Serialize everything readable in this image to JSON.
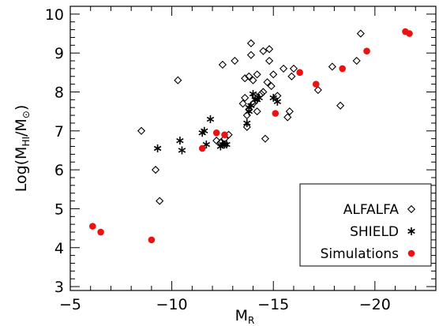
{
  "chart_data": {
    "type": "scatter",
    "xlabel": {
      "main": "M",
      "sub": "R"
    },
    "ylabel": {
      "prefix": "Log(M",
      "sub1": "HI",
      "mid": "/M",
      "sub2": "⊙",
      "suffix": ")"
    },
    "xlim": [
      -5,
      -23
    ],
    "ylim": [
      2.9,
      10.2
    ],
    "xticks": [
      -5,
      -10,
      -15,
      -20
    ],
    "xtick_labels": [
      "−5",
      "−10",
      "−15",
      "−20"
    ],
    "yticks": [
      3,
      4,
      5,
      6,
      7,
      8,
      9,
      10
    ],
    "ytick_labels": [
      "3",
      "4",
      "5",
      "6",
      "7",
      "8",
      "9",
      "10"
    ],
    "grid": false,
    "legend_position": "bottom-right",
    "series": [
      {
        "name": "ALFALFA",
        "marker": "diamond",
        "color": "#000000",
        "points": [
          [
            -8.5,
            7.0
          ],
          [
            -9.2,
            6.0
          ],
          [
            -9.4,
            5.2
          ],
          [
            -10.3,
            8.3
          ],
          [
            -12.2,
            6.75
          ],
          [
            -12.5,
            8.7
          ],
          [
            -12.4,
            6.7
          ],
          [
            -12.6,
            6.8
          ],
          [
            -12.8,
            6.9
          ],
          [
            -13.1,
            8.8
          ],
          [
            -13.5,
            7.7
          ],
          [
            -13.6,
            7.85
          ],
          [
            -13.6,
            8.35
          ],
          [
            -13.7,
            7.4
          ],
          [
            -13.7,
            7.1
          ],
          [
            -13.8,
            8.4
          ],
          [
            -13.8,
            7.55
          ],
          [
            -13.9,
            8.95
          ],
          [
            -14.0,
            8.3
          ],
          [
            -14.0,
            7.7
          ],
          [
            -13.9,
            9.25
          ],
          [
            -14.1,
            7.9
          ],
          [
            -14.2,
            8.45
          ],
          [
            -14.2,
            7.5
          ],
          [
            -14.4,
            7.95
          ],
          [
            -14.5,
            8.0
          ],
          [
            -14.5,
            9.05
          ],
          [
            -14.7,
            8.25
          ],
          [
            -14.8,
            9.1
          ],
          [
            -14.9,
            8.15
          ],
          [
            -14.8,
            8.8
          ],
          [
            -15.0,
            8.45
          ],
          [
            -15.2,
            7.9
          ],
          [
            -14.6,
            6.8
          ],
          [
            -15.5,
            8.6
          ],
          [
            -15.7,
            7.35
          ],
          [
            -15.8,
            7.5
          ],
          [
            -15.9,
            8.4
          ],
          [
            -16.0,
            8.6
          ],
          [
            -17.2,
            8.05
          ],
          [
            -17.9,
            8.65
          ],
          [
            -18.3,
            7.65
          ],
          [
            -19.1,
            8.8
          ],
          [
            -19.3,
            9.5
          ]
        ]
      },
      {
        "name": "SHIELD",
        "marker": "asterisk",
        "color": "#000000",
        "points": [
          [
            -9.3,
            6.55
          ],
          [
            -10.4,
            6.75
          ],
          [
            -10.5,
            6.5
          ],
          [
            -11.5,
            6.95
          ],
          [
            -11.6,
            7.0
          ],
          [
            -11.7,
            6.65
          ],
          [
            -11.9,
            7.3
          ],
          [
            -12.4,
            6.6
          ],
          [
            -12.5,
            6.65
          ],
          [
            -12.6,
            6.65
          ],
          [
            -12.7,
            6.65
          ],
          [
            -13.7,
            7.2
          ],
          [
            -13.8,
            7.5
          ],
          [
            -13.8,
            7.6
          ],
          [
            -13.9,
            7.65
          ],
          [
            -14.0,
            7.95
          ],
          [
            -14.1,
            7.8
          ],
          [
            -14.2,
            7.8
          ],
          [
            -14.3,
            7.85
          ],
          [
            -15.0,
            7.85
          ],
          [
            -15.2,
            7.75
          ]
        ]
      },
      {
        "name": "Simulations",
        "marker": "filled-circle",
        "color": "#ee1111",
        "points": [
          [
            -6.1,
            4.55
          ],
          [
            -6.5,
            4.4
          ],
          [
            -9.0,
            4.2
          ],
          [
            -11.5,
            6.55
          ],
          [
            -12.2,
            6.95
          ],
          [
            -12.6,
            6.9
          ],
          [
            -15.1,
            7.45
          ],
          [
            -16.3,
            8.5
          ],
          [
            -17.1,
            8.2
          ],
          [
            -18.4,
            8.6
          ],
          [
            -19.6,
            9.05
          ],
          [
            -21.5,
            9.55
          ],
          [
            -21.7,
            9.5
          ]
        ]
      }
    ]
  }
}
